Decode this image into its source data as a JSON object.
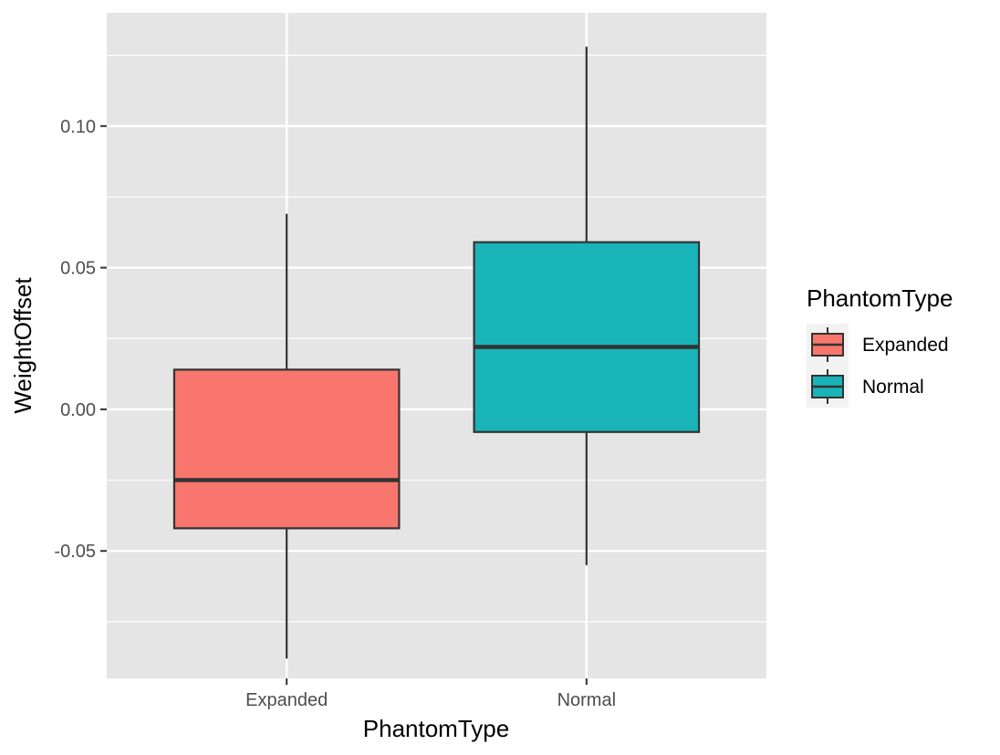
{
  "chart_data": {
    "type": "boxplot",
    "xlabel": "PhantomType",
    "ylabel": "WeightOffset",
    "categories": [
      "Expanded",
      "Normal"
    ],
    "ylim": [
      -0.095,
      0.14
    ],
    "yticks": [
      -0.05,
      0.0,
      0.05,
      0.1
    ],
    "ytick_labels": [
      "-0.05",
      "0.00",
      "0.05",
      "0.10"
    ],
    "grid": true,
    "legend": {
      "title": "PhantomType",
      "position": "right",
      "entries": [
        "Expanded",
        "Normal"
      ]
    },
    "series": [
      {
        "category": "Expanded",
        "min": -0.088,
        "q1": -0.042,
        "median": -0.025,
        "q3": 0.014,
        "max": 0.069,
        "color": "#F8766D"
      },
      {
        "category": "Normal",
        "min": -0.055,
        "q1": -0.008,
        "median": 0.022,
        "q3": 0.059,
        "max": 0.128,
        "color": "#00BFC4"
      }
    ],
    "colors": {
      "panel_bg": "#E5E5E5",
      "grid": "#FFFFFF",
      "outline": "#333333",
      "expanded_fill": "#F8766D",
      "normal_fill": "#19B4B8"
    }
  }
}
